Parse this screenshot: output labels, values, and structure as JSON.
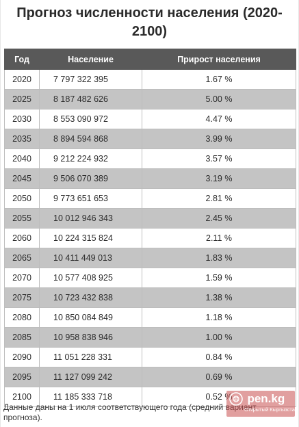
{
  "title": "Прогноз численности населения (2020-2100)",
  "table": {
    "headers": [
      "Год",
      "Население",
      "Прирост населения"
    ],
    "rows": [
      [
        "2020",
        "7 797 322 395",
        "1.67 %"
      ],
      [
        "2025",
        "8 187 482 626",
        "5.00 %"
      ],
      [
        "2030",
        "8 553 090 972",
        "4.47 %"
      ],
      [
        "2035",
        "8 894 594 868",
        "3.99 %"
      ],
      [
        "2040",
        "9 212 224 932",
        "3.57 %"
      ],
      [
        "2045",
        "9 506 070 389",
        "3.19 %"
      ],
      [
        "2050",
        "9 773 651 653",
        "2.81 %"
      ],
      [
        "2055",
        "10 012 946 343",
        "2.45 %"
      ],
      [
        "2060",
        "10 224 315 824",
        "2.11 %"
      ],
      [
        "2065",
        "10 411 449 013",
        "1.83 %"
      ],
      [
        "2070",
        "10 577 408 925",
        "1.59 %"
      ],
      [
        "2075",
        "10 723 432 838",
        "1.38 %"
      ],
      [
        "2080",
        "10 850 084 849",
        "1.18 %"
      ],
      [
        "2085",
        "10 958 838 946",
        "1.00 %"
      ],
      [
        "2090",
        "11 051 228 331",
        "0.84 %"
      ],
      [
        "2095",
        "11 127 099 242",
        "0.69 %"
      ],
      [
        "2100",
        "11 185 333 718",
        "0.52 %"
      ]
    ]
  },
  "footnote": "Данные даны на 1 июля соответствующего года (средний вариант прогноза).",
  "watermark": {
    "name": "pen.kg",
    "tagline": "Открытый Кыргызстан",
    "icon": "kyrgyz-sun-logo-icon"
  },
  "colors": {
    "header_bg": "#595959",
    "stripe_bg": "#c4c4c4",
    "watermark_bg": "#c85050"
  }
}
